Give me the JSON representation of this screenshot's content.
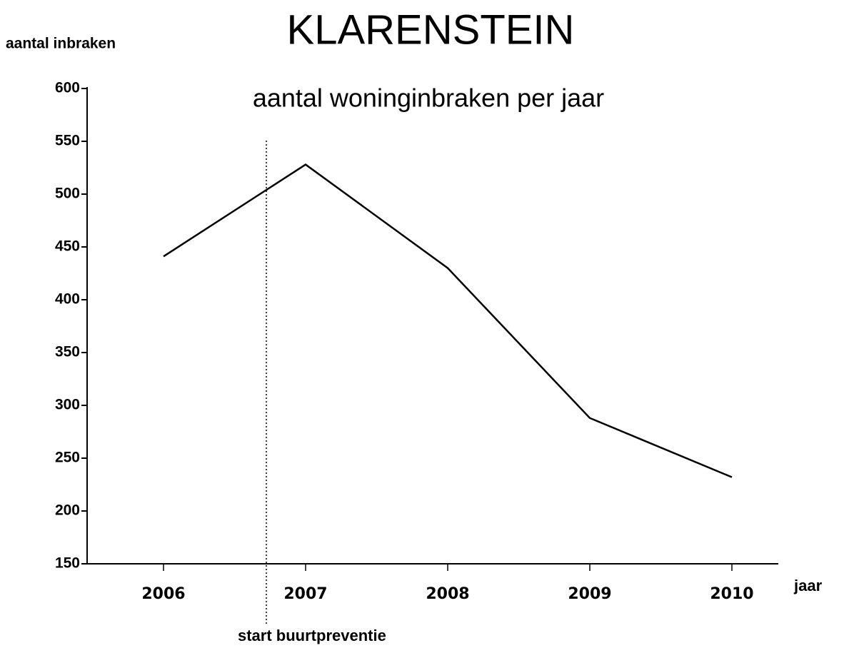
{
  "chart_data": {
    "type": "line",
    "title": "KLARENSTEIN",
    "subtitle": "aantal woninginbraken per jaar",
    "y_label": "aantal inbraken",
    "x_label": "jaar",
    "annotation": "start buurtpreventie",
    "categories": [
      "2006",
      "2007",
      "2008",
      "2009",
      "2010"
    ],
    "values": [
      441,
      528,
      430,
      288,
      232
    ],
    "color": "#000000",
    "ylim": [
      150,
      600
    ],
    "yticks": [
      150,
      200,
      250,
      300,
      350,
      400,
      450,
      500,
      550,
      600
    ],
    "grid": false
  }
}
